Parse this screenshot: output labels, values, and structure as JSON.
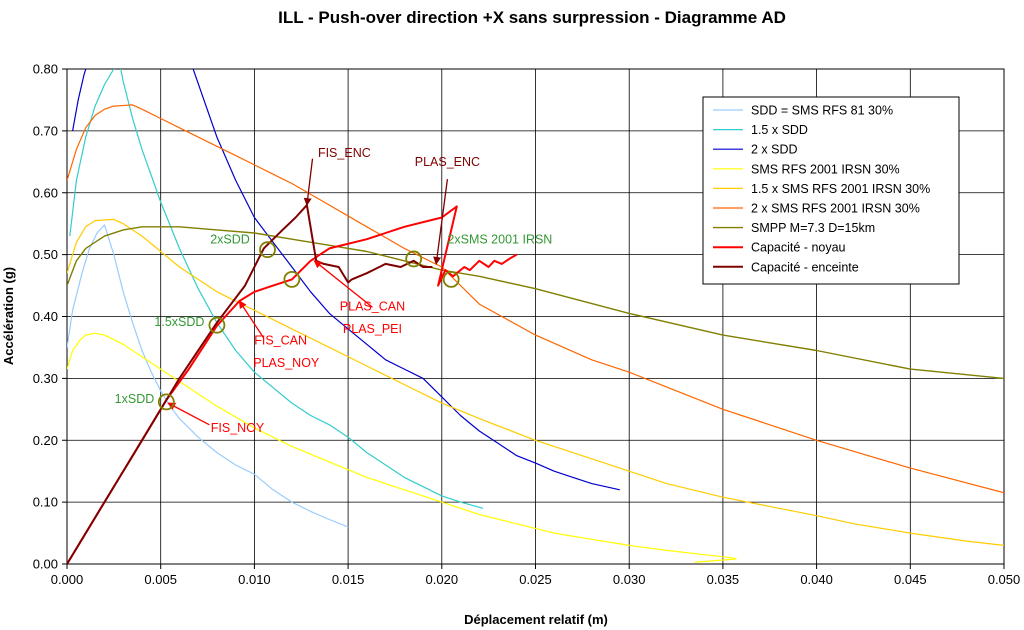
{
  "chart_data": {
    "type": "line",
    "title": "ILL - Push-over direction +X sans surpression - Diagramme AD",
    "xlabel": "Déplacement relatif (m)",
    "ylabel": "Accélération (g)",
    "xlim": [
      0,
      0.05
    ],
    "ylim": [
      0,
      0.8
    ],
    "x_ticks": [
      0,
      0.005,
      0.01,
      0.015,
      0.02,
      0.025,
      0.03,
      0.035,
      0.04,
      0.045,
      0.05
    ],
    "x_tick_labels": [
      "0.000",
      "0.005",
      "0.010",
      "0.015",
      "0.020",
      "0.025",
      "0.030",
      "0.035",
      "0.040",
      "0.045",
      "0.050"
    ],
    "y_ticks": [
      0,
      0.1,
      0.2,
      0.3,
      0.4,
      0.5,
      0.6,
      0.7,
      0.8
    ],
    "y_tick_labels": [
      "0.00",
      "0.10",
      "0.20",
      "0.30",
      "0.40",
      "0.50",
      "0.60",
      "0.70",
      "0.80"
    ],
    "grid": true,
    "legend_position": "top-right",
    "series": [
      {
        "name": "SDD = SMS RFS 81 30%",
        "color": "#99ccff",
        "width": 1.2,
        "x": [
          0,
          0.0003,
          0.0008,
          0.0012,
          0.0016,
          0.002,
          0.0025,
          0.003,
          0.0035,
          0.004,
          0.0045,
          0.005,
          0.0055,
          0.006,
          0.007,
          0.008,
          0.009,
          0.01,
          0.011,
          0.012,
          0.013,
          0.014,
          0.015
        ],
        "y": [
          0.35,
          0.41,
          0.47,
          0.51,
          0.535,
          0.548,
          0.5,
          0.44,
          0.39,
          0.345,
          0.31,
          0.28,
          0.255,
          0.235,
          0.205,
          0.18,
          0.16,
          0.145,
          0.12,
          0.1,
          0.085,
          0.072,
          0.06
        ]
      },
      {
        "name": "1.5 x SDD",
        "color": "#33cccc",
        "width": 1.2,
        "x": [
          0.00015,
          0.0005,
          0.001,
          0.0015,
          0.002,
          0.0025,
          0.0028,
          0.003,
          0.0035,
          0.004,
          0.005,
          0.006,
          0.007,
          0.008,
          0.009,
          0.01,
          0.011,
          0.012,
          0.013,
          0.014,
          0.015,
          0.016,
          0.017,
          0.018,
          0.019,
          0.02,
          0.021,
          0.0222
        ],
        "y": [
          0.53,
          0.62,
          0.69,
          0.74,
          0.775,
          0.8,
          0.81,
          0.78,
          0.72,
          0.67,
          0.585,
          0.51,
          0.445,
          0.39,
          0.345,
          0.31,
          0.285,
          0.26,
          0.24,
          0.225,
          0.205,
          0.18,
          0.16,
          0.14,
          0.125,
          0.11,
          0.1,
          0.09
        ]
      },
      {
        "name": "2 x SDD",
        "color": "#0000cc",
        "width": 1.2,
        "x": [
          0.0003,
          0.0006,
          0.0009,
          0.0012,
          0.0065,
          0.008,
          0.009,
          0.01,
          0.011,
          0.012,
          0.013,
          0.014,
          0.015,
          0.016,
          0.017,
          0.018,
          0.019,
          0.02,
          0.021,
          0.022,
          0.023,
          0.024,
          0.025,
          0.026,
          0.027,
          0.028,
          0.0295
        ],
        "y": [
          0.7,
          0.75,
          0.79,
          0.82,
          0.82,
          0.69,
          0.62,
          0.56,
          0.52,
          0.48,
          0.44,
          0.405,
          0.38,
          0.355,
          0.33,
          0.315,
          0.3,
          0.27,
          0.24,
          0.215,
          0.195,
          0.175,
          0.163,
          0.15,
          0.14,
          0.13,
          0.12
        ]
      },
      {
        "name": "SMS RFS 2001 IRSN 30%",
        "color": "#ffff00",
        "width": 1.2,
        "x": [
          0,
          0.0003,
          0.0007,
          0.001,
          0.0015,
          0.002,
          0.003,
          0.004,
          0.005,
          0.006,
          0.008,
          0.01,
          0.012,
          0.014,
          0.016,
          0.018,
          0.02,
          0.022,
          0.024,
          0.026,
          0.028,
          0.03,
          0.032,
          0.034,
          0.0355,
          0.0357,
          0.034,
          0.0335
        ],
        "y": [
          0.315,
          0.345,
          0.362,
          0.37,
          0.373,
          0.37,
          0.355,
          0.335,
          0.315,
          0.295,
          0.255,
          0.22,
          0.19,
          0.165,
          0.14,
          0.12,
          0.1,
          0.08,
          0.065,
          0.05,
          0.04,
          0.03,
          0.022,
          0.015,
          0.01,
          0.008,
          0.004,
          0.003
        ]
      },
      {
        "name": "1.5 x SMS RFS 2001 IRSN 30%",
        "color": "#ffcc00",
        "width": 1.2,
        "x": [
          0,
          0.0005,
          0.001,
          0.0015,
          0.0025,
          0.003,
          0.004,
          0.005,
          0.006,
          0.008,
          0.01,
          0.012,
          0.014,
          0.016,
          0.018,
          0.02,
          0.022,
          0.025,
          0.028,
          0.03,
          0.032,
          0.035,
          0.038,
          0.04,
          0.042,
          0.045,
          0.048,
          0.05
        ],
        "y": [
          0.47,
          0.52,
          0.545,
          0.555,
          0.557,
          0.55,
          0.53,
          0.505,
          0.48,
          0.44,
          0.41,
          0.38,
          0.35,
          0.32,
          0.29,
          0.26,
          0.235,
          0.2,
          0.17,
          0.15,
          0.13,
          0.108,
          0.09,
          0.078,
          0.065,
          0.05,
          0.037,
          0.03
        ]
      },
      {
        "name": "2 x SMS RFS 2001 IRSN 30%",
        "color": "#ff6600",
        "width": 1.2,
        "x": [
          0,
          0.0005,
          0.001,
          0.0015,
          0.002,
          0.0025,
          0.0035,
          0.004,
          0.005,
          0.006,
          0.007,
          0.008,
          0.009,
          0.01,
          0.011,
          0.012,
          0.014,
          0.016,
          0.018,
          0.02,
          0.022,
          0.025,
          0.028,
          0.03,
          0.035,
          0.04,
          0.045,
          0.05
        ],
        "y": [
          0.62,
          0.67,
          0.705,
          0.725,
          0.735,
          0.74,
          0.742,
          0.735,
          0.72,
          0.705,
          0.69,
          0.675,
          0.66,
          0.645,
          0.63,
          0.615,
          0.58,
          0.545,
          0.51,
          0.48,
          0.42,
          0.37,
          0.33,
          0.31,
          0.25,
          0.2,
          0.155,
          0.115
        ]
      },
      {
        "name": "SMPP M=7.3 D=15km",
        "color": "#808000",
        "width": 1.4,
        "x": [
          0,
          0.0005,
          0.001,
          0.002,
          0.003,
          0.004,
          0.005,
          0.006,
          0.008,
          0.01,
          0.012,
          0.014,
          0.016,
          0.018,
          0.02,
          0.022,
          0.025,
          0.03,
          0.035,
          0.04,
          0.045,
          0.05
        ],
        "y": [
          0.45,
          0.49,
          0.51,
          0.53,
          0.54,
          0.545,
          0.545,
          0.545,
          0.54,
          0.535,
          0.525,
          0.515,
          0.505,
          0.49,
          0.475,
          0.465,
          0.445,
          0.405,
          0.37,
          0.345,
          0.315,
          0.3
        ]
      },
      {
        "name": "Capacité - noyau",
        "color": "#ff0000",
        "width": 2,
        "x": [
          0,
          0.002,
          0.004,
          0.0053,
          0.0065,
          0.008,
          0.0092,
          0.01,
          0.011,
          0.012,
          0.0125,
          0.013,
          0.0135,
          0.014,
          0.016,
          0.018,
          0.02,
          0.0208,
          0.0198,
          0.0202,
          0.0206,
          0.0212,
          0.0215,
          0.022,
          0.0225,
          0.0228,
          0.0232,
          0.0237,
          0.024
        ],
        "y": [
          0,
          0.1,
          0.2,
          0.265,
          0.315,
          0.385,
          0.425,
          0.44,
          0.45,
          0.46,
          0.475,
          0.49,
          0.5,
          0.51,
          0.525,
          0.545,
          0.56,
          0.578,
          0.45,
          0.475,
          0.465,
          0.48,
          0.475,
          0.49,
          0.48,
          0.49,
          0.485,
          0.495,
          0.5
        ]
      },
      {
        "name": "Capacité - enceinte",
        "color": "#800000",
        "width": 2,
        "x": [
          0,
          0.002,
          0.004,
          0.006,
          0.008,
          0.0095,
          0.0105,
          0.0115,
          0.0122,
          0.0128,
          0.0133,
          0.0137,
          0.0145,
          0.015,
          0.0152,
          0.016,
          0.017,
          0.0178,
          0.0185,
          0.019,
          0.0195
        ],
        "y": [
          0,
          0.1,
          0.2,
          0.3,
          0.39,
          0.45,
          0.51,
          0.54,
          0.56,
          0.58,
          0.49,
          0.485,
          0.48,
          0.455,
          0.46,
          0.47,
          0.485,
          0.48,
          0.49,
          0.48,
          0.48
        ]
      }
    ],
    "markers": [
      {
        "x": 0.0053,
        "y": 0.262
      },
      {
        "x": 0.008,
        "y": 0.386
      },
      {
        "x": 0.0107,
        "y": 0.508
      },
      {
        "x": 0.012,
        "y": 0.46
      },
      {
        "x": 0.0185,
        "y": 0.493
      },
      {
        "x": 0.0205,
        "y": 0.46
      }
    ],
    "annotations": [
      {
        "text": "1xSDD",
        "x": 0.0036,
        "y": 0.26,
        "color": "#339933",
        "anchor": "middle"
      },
      {
        "text": "1.5xSDD",
        "x": 0.006,
        "y": 0.385,
        "color": "#339933",
        "anchor": "middle"
      },
      {
        "text": "2xSDD",
        "x": 0.0087,
        "y": 0.518,
        "color": "#339933",
        "anchor": "middle"
      },
      {
        "text": "2xSMS 2001 IRSN",
        "x": 0.0231,
        "y": 0.518,
        "color": "#339933",
        "anchor": "middle"
      },
      {
        "text": "FIS_ENC",
        "x": 0.0148,
        "y": 0.658,
        "color": "#800000",
        "anchor": "middle"
      },
      {
        "text": "PLAS_ENC",
        "x": 0.0203,
        "y": 0.643,
        "color": "#800000",
        "anchor": "middle"
      },
      {
        "text": "PLAS_CAN",
        "x": 0.0163,
        "y": 0.41,
        "color": "#ff0000",
        "anchor": "middle"
      },
      {
        "text": "PLAS_PEI",
        "x": 0.0163,
        "y": 0.373,
        "color": "#ff0000",
        "anchor": "middle"
      },
      {
        "text": "FIS_CAN",
        "x": 0.0114,
        "y": 0.355,
        "color": "#ff0000",
        "anchor": "middle"
      },
      {
        "text": "PLAS_NOY",
        "x": 0.0117,
        "y": 0.318,
        "color": "#ff0000",
        "anchor": "middle"
      },
      {
        "text": "FIS_NOY",
        "x": 0.0091,
        "y": 0.213,
        "color": "#ff0000",
        "anchor": "middle"
      }
    ],
    "arrows": [
      {
        "x1": 0.0131,
        "y1": 0.655,
        "x2": 0.0128,
        "y2": 0.58,
        "color": "#800000"
      },
      {
        "x1": 0.0203,
        "y1": 0.622,
        "x2": 0.0197,
        "y2": 0.485,
        "color": "#800000"
      },
      {
        "x1": 0.0163,
        "y1": 0.415,
        "x2": 0.0132,
        "y2": 0.49,
        "color": "#ff0000"
      },
      {
        "x1": 0.0105,
        "y1": 0.365,
        "x2": 0.0092,
        "y2": 0.425,
        "color": "#ff0000"
      },
      {
        "x1": 0.0076,
        "y1": 0.225,
        "x2": 0.0054,
        "y2": 0.26,
        "color": "#ff0000"
      }
    ]
  }
}
